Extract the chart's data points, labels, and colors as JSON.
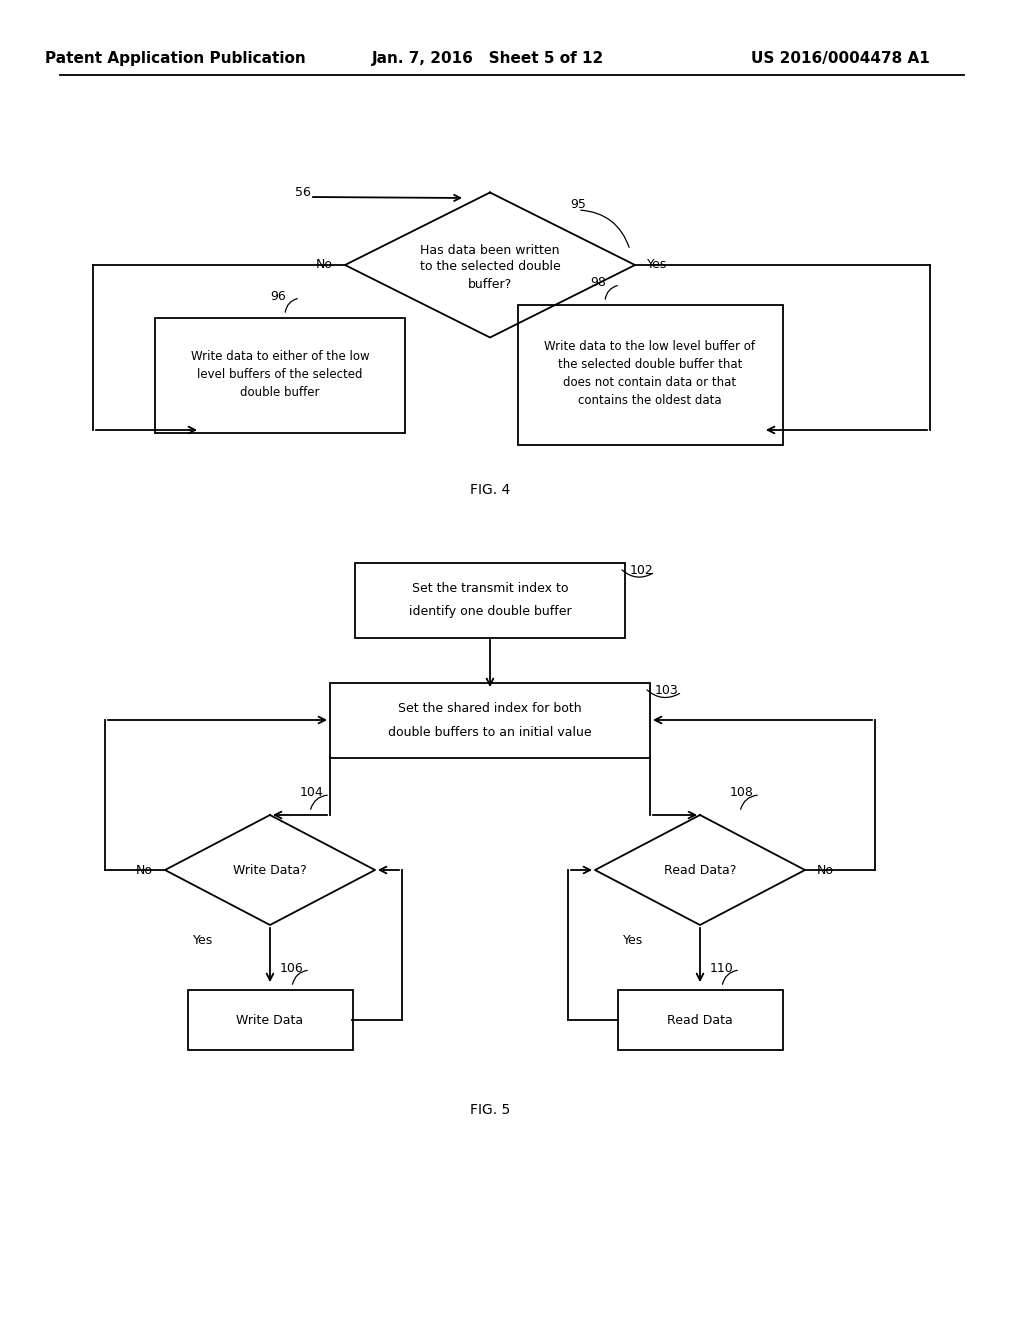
{
  "header_left": "Patent Application Publication",
  "header_mid": "Jan. 7, 2016   Sheet 5 of 12",
  "header_right": "US 2016/0004478 A1",
  "fig4_label": "FIG. 4",
  "fig5_label": "FIG. 5",
  "bg_color": "#ffffff",
  "line_color": "#000000",
  "text_color": "#000000"
}
